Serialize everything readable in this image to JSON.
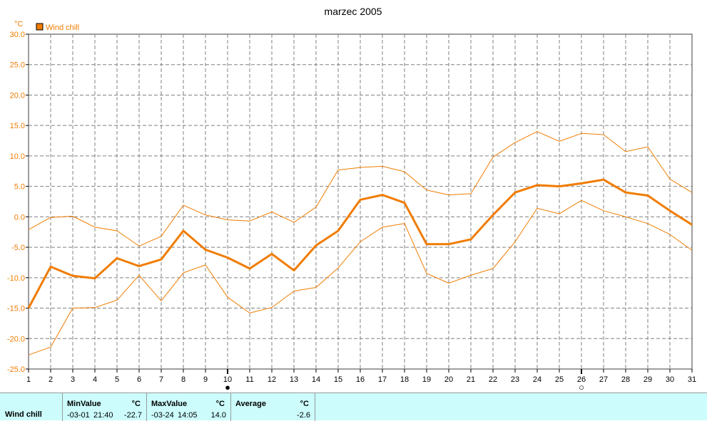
{
  "chart_data": {
    "type": "line",
    "title": "marzec 2005",
    "y_unit": "°C",
    "ylim": [
      -25,
      30
    ],
    "y_ticks": [
      "30.0",
      "25.0",
      "20.0",
      "15.0",
      "10.0",
      "5.0",
      "0.0",
      "-5.0",
      "-10.0",
      "-15.0",
      "-20.0",
      "-25.0"
    ],
    "x": [
      1,
      2,
      3,
      4,
      5,
      6,
      7,
      8,
      9,
      10,
      11,
      12,
      13,
      14,
      15,
      16,
      17,
      18,
      19,
      20,
      21,
      22,
      23,
      24,
      25,
      26,
      27,
      28,
      29,
      30,
      31
    ],
    "grid": true,
    "legend": {
      "position": "top-left",
      "label": "Wind chill"
    },
    "colors": {
      "series": "#f07c00",
      "grid": "#808080",
      "frame": "#7f7f7f"
    },
    "series": [
      {
        "name": "Wind chill",
        "role": "average",
        "values": [
          -15.0,
          -8.2,
          -9.7,
          -10.1,
          -6.8,
          -8.1,
          -7.0,
          -2.3,
          -5.4,
          -6.7,
          -8.5,
          -6.1,
          -8.8,
          -4.7,
          -2.3,
          2.8,
          3.6,
          2.3,
          -4.5,
          -4.5,
          -3.7,
          0.3,
          4.0,
          5.2,
          5.0,
          5.5,
          6.1,
          4.0,
          3.5,
          1.0,
          -1.3
        ]
      },
      {
        "role": "max",
        "values": [
          -2.1,
          -0.1,
          0.1,
          -1.7,
          -2.3,
          -4.8,
          -3.2,
          1.9,
          0.3,
          -0.5,
          -0.7,
          0.8,
          -0.9,
          1.6,
          7.7,
          8.1,
          8.3,
          7.4,
          4.4,
          3.6,
          3.8,
          9.8,
          12.2,
          14.0,
          12.4,
          13.7,
          13.5,
          10.7,
          11.5,
          6.2,
          4.0
        ]
      },
      {
        "role": "min",
        "values": [
          -22.7,
          -21.4,
          -15.0,
          -14.9,
          -13.7,
          -9.6,
          -13.8,
          -9.2,
          -7.9,
          -13.2,
          -15.8,
          -14.9,
          -12.2,
          -11.6,
          -8.4,
          -4.1,
          -1.7,
          -1.1,
          -9.3,
          -10.9,
          -9.6,
          -8.5,
          -4.1,
          1.4,
          0.5,
          2.7,
          1.0,
          0.0,
          -1.1,
          -2.9,
          -5.5
        ]
      }
    ],
    "markers": [
      {
        "day": 10,
        "symbol": "●"
      },
      {
        "day": 26,
        "symbol": "○"
      }
    ]
  },
  "stats": {
    "series_label": "Wind chill",
    "min_header": "MinValue",
    "min_unit": "°C",
    "min_date": "-03-01",
    "min_time": "21:40",
    "min_value": "-22.7",
    "max_header": "MaxValue",
    "max_unit": "°C",
    "max_date": "-03-24",
    "max_time": "14:05",
    "max_value": "14.0",
    "avg_header": "Average",
    "avg_unit": "°C",
    "avg_value": "-2.6"
  }
}
